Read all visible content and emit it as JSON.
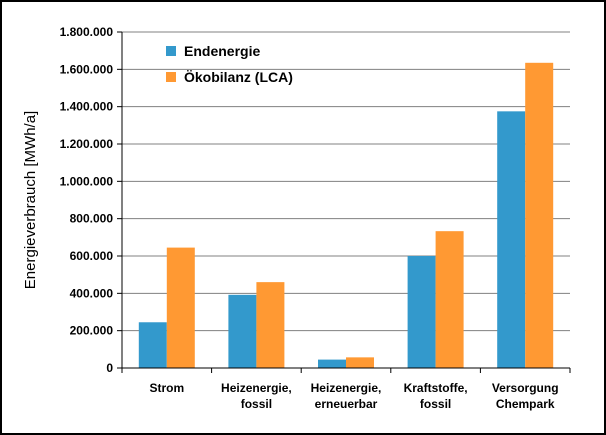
{
  "chart_data": {
    "type": "bar",
    "title": "",
    "xlabel": "",
    "ylabel": "Energieverbrauch [MWh/a]",
    "ylim": [
      0,
      1800000
    ],
    "yticks": [
      0,
      200000,
      400000,
      600000,
      800000,
      1000000,
      1200000,
      1400000,
      1600000,
      1800000
    ],
    "ytick_labels": [
      "0",
      "200.000",
      "400.000",
      "600.000",
      "800.000",
      "1.000.000",
      "1.200.000",
      "1.400.000",
      "1.600.000",
      "1.800.000"
    ],
    "grid": true,
    "legend_position": "top-left",
    "categories": [
      [
        "Strom"
      ],
      [
        "Heizenergie,",
        "fossil"
      ],
      [
        "Heizenergie,",
        "erneuerbar"
      ],
      [
        "Kraftstoffe,",
        "fossil"
      ],
      [
        "Versorgung",
        "Chempark"
      ]
    ],
    "series": [
      {
        "name": "Endenergie",
        "color": "#3399CC",
        "values": [
          245000,
          392000,
          45000,
          600000,
          1375000
        ]
      },
      {
        "name": "Ökobilanz (LCA)",
        "color": "#FF9933",
        "values": [
          645000,
          460000,
          57000,
          733000,
          1635000
        ]
      }
    ]
  }
}
